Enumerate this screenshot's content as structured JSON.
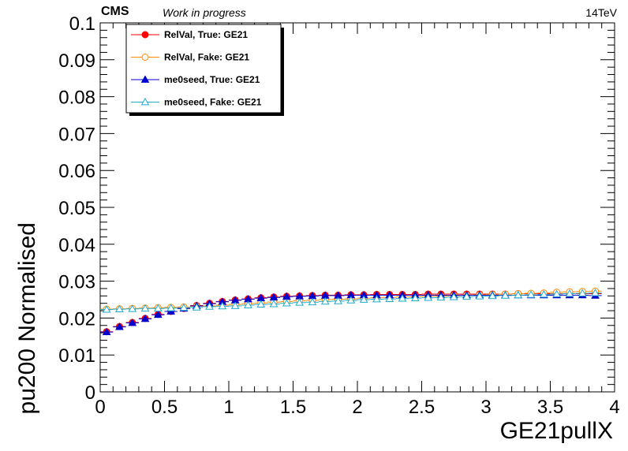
{
  "header": {
    "experiment": "CMS",
    "status": "Work in progress",
    "energy": "14TeV"
  },
  "chart_data": {
    "type": "scatter",
    "xlabel": "GE21pullX",
    "ylabel": "pu200 Normalised",
    "xlim": [
      0,
      4
    ],
    "ylim": [
      0,
      0.1
    ],
    "x_ticks": [
      "0",
      "0.5",
      "1",
      "1.5",
      "2",
      "2.5",
      "3",
      "3.5",
      "4"
    ],
    "y_ticks": [
      "0",
      "0.01",
      "0.02",
      "0.03",
      "0.04",
      "0.05",
      "0.06",
      "0.07",
      "0.08",
      "0.09",
      "0.1"
    ],
    "grid": false,
    "legend_position": "top-left",
    "x": [
      0.05,
      0.15,
      0.25,
      0.35,
      0.45,
      0.55,
      0.65,
      0.75,
      0.85,
      0.95,
      1.05,
      1.15,
      1.25,
      1.35,
      1.45,
      1.55,
      1.65,
      1.75,
      1.85,
      1.95,
      2.05,
      2.15,
      2.25,
      2.35,
      2.45,
      2.55,
      2.65,
      2.75,
      2.85,
      2.95,
      3.05,
      3.15,
      3.25,
      3.35,
      3.45,
      3.55,
      3.65,
      3.75,
      3.85
    ],
    "series": [
      {
        "name": "RelVal, True: GE21",
        "color": "#ff0000",
        "marker": "filled-circle",
        "values": [
          0.0163,
          0.0177,
          0.0188,
          0.0199,
          0.021,
          0.0218,
          0.0226,
          0.0234,
          0.024,
          0.0245,
          0.0249,
          0.0252,
          0.0255,
          0.0257,
          0.0259,
          0.026,
          0.0261,
          0.0262,
          0.0262,
          0.0263,
          0.0263,
          0.0264,
          0.0264,
          0.0264,
          0.0264,
          0.0265,
          0.0265,
          0.0265,
          0.0265,
          0.0265,
          0.0265,
          0.0265,
          0.0266,
          0.0266,
          0.0266,
          0.0266,
          0.0266,
          0.0266,
          0.0266
        ]
      },
      {
        "name": "RelVal, Fake: GE21",
        "color": "#ff8800",
        "marker": "open-circle",
        "values": [
          0.0224,
          0.0225,
          0.0226,
          0.0227,
          0.0228,
          0.0229,
          0.023,
          0.0232,
          0.0233,
          0.0235,
          0.0237,
          0.0239,
          0.0241,
          0.0243,
          0.0245,
          0.0247,
          0.0248,
          0.025,
          0.0251,
          0.0252,
          0.0254,
          0.0255,
          0.0256,
          0.0257,
          0.0258,
          0.0259,
          0.026,
          0.0261,
          0.0262,
          0.0263,
          0.0264,
          0.0265,
          0.0266,
          0.0267,
          0.0268,
          0.027,
          0.0271,
          0.0272,
          0.0273
        ]
      },
      {
        "name": "me0seed, True: GE21",
        "color": "#0000cc",
        "marker": "filled-triangle",
        "values": [
          0.0162,
          0.0176,
          0.0187,
          0.0198,
          0.0209,
          0.0218,
          0.0226,
          0.0233,
          0.0239,
          0.0244,
          0.0248,
          0.0251,
          0.0254,
          0.0256,
          0.0258,
          0.0259,
          0.026,
          0.0261,
          0.0261,
          0.0262,
          0.0262,
          0.0262,
          0.0262,
          0.0262,
          0.0262,
          0.0262,
          0.0262,
          0.0262,
          0.0262,
          0.0262,
          0.0262,
          0.0262,
          0.0262,
          0.0262,
          0.0262,
          0.0262,
          0.0262,
          0.0262,
          0.0261
        ]
      },
      {
        "name": "me0seed, Fake: GE21",
        "color": "#22aacc",
        "marker": "open-triangle",
        "values": [
          0.0223,
          0.0224,
          0.0225,
          0.0226,
          0.0226,
          0.0227,
          0.0228,
          0.0229,
          0.0231,
          0.0232,
          0.0233,
          0.0235,
          0.0237,
          0.0238,
          0.024,
          0.0242,
          0.0243,
          0.0245,
          0.0246,
          0.0248,
          0.025,
          0.0251,
          0.0252,
          0.0253,
          0.0254,
          0.0255,
          0.0256,
          0.0257,
          0.0258,
          0.0259,
          0.026,
          0.0261,
          0.0262,
          0.0263,
          0.0264,
          0.0265,
          0.0266,
          0.0267,
          0.0268
        ]
      }
    ]
  }
}
